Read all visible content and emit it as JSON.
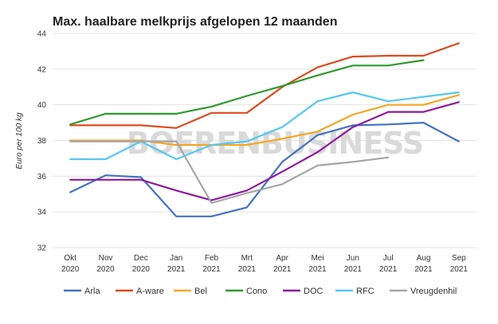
{
  "chart_data": {
    "type": "line",
    "title": "Max. haalbare melkprijs afgelopen 12 maanden",
    "ylabel": "Euro per 100 kg",
    "xlabel": "",
    "ylim": [
      32,
      44
    ],
    "yticks": [
      32,
      34,
      36,
      38,
      40,
      42,
      44
    ],
    "grid": true,
    "legend_position": "bottom",
    "watermark": "BOERENBUSINESS",
    "categories": [
      [
        "Okt",
        "2020"
      ],
      [
        "Nov",
        "2020"
      ],
      [
        "Dec",
        "2020"
      ],
      [
        "Jan",
        "2021"
      ],
      [
        "Feb",
        "2021"
      ],
      [
        "Mrt",
        "2021"
      ],
      [
        "Apr",
        "2021"
      ],
      [
        "Mei",
        "2021"
      ],
      [
        "Jun",
        "2021"
      ],
      [
        "Jul",
        "2021"
      ],
      [
        "Aug",
        "2021"
      ],
      [
        "Sep",
        "2021"
      ]
    ],
    "series": [
      {
        "name": "Arla",
        "color": "#4472c4",
        "values": [
          35.1,
          36.05,
          35.95,
          33.75,
          33.75,
          34.25,
          36.8,
          38.3,
          38.85,
          38.9,
          39.0,
          37.95
        ]
      },
      {
        "name": "A-ware",
        "color": "#dd4b20",
        "values": [
          38.85,
          38.85,
          38.85,
          38.7,
          39.55,
          39.55,
          41.0,
          42.1,
          42.7,
          42.75,
          42.75,
          43.45
        ]
      },
      {
        "name": "Bel",
        "color": "#f5a623",
        "values": [
          38.0,
          38.0,
          38.0,
          37.75,
          37.75,
          37.75,
          38.1,
          38.5,
          39.45,
          40.0,
          40.0,
          40.55
        ]
      },
      {
        "name": "Cono",
        "color": "#2e9a2e",
        "values": [
          38.9,
          39.5,
          39.5,
          39.5,
          39.9,
          40.5,
          41.05,
          41.65,
          42.2,
          42.2,
          42.5,
          null
        ]
      },
      {
        "name": "DOC",
        "color": "#8e1a9e",
        "values": [
          35.8,
          35.8,
          35.8,
          35.2,
          34.65,
          35.2,
          36.25,
          37.35,
          38.75,
          39.6,
          39.6,
          40.15
        ]
      },
      {
        "name": "RFC",
        "color": "#55c8f0",
        "values": [
          36.95,
          36.95,
          37.95,
          36.95,
          37.75,
          37.95,
          38.75,
          40.2,
          40.7,
          40.2,
          40.45,
          40.7
        ]
      },
      {
        "name": "Vreugdenhil",
        "color": "#a6a6a6",
        "values": [
          37.95,
          37.95,
          37.95,
          37.95,
          34.5,
          35.05,
          35.55,
          36.6,
          36.8,
          37.05,
          null,
          null
        ]
      }
    ]
  }
}
